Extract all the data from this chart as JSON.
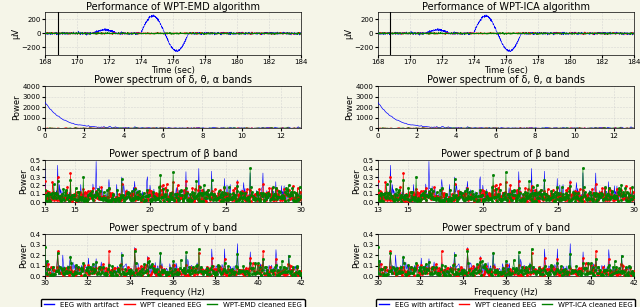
{
  "left_title": "Performance of WPT-EMD algorithm",
  "right_title": "Performance of WPT-ICA algorithm",
  "left_legend": [
    "EEG with artifact",
    "WPT cleaned EEG",
    "WPT-EMD cleaned EEG"
  ],
  "right_legend": [
    "EEG with artifact",
    "WPT cleaned EEG",
    "WPT-ICA cleaned EEG"
  ],
  "legend_colors": [
    "blue",
    "red",
    "green"
  ],
  "eeg_ylabel": "μV",
  "power_ylabel": "Power",
  "time_xlabel": "Time (sec)",
  "freq_xlabel": "Frequency (Hz)",
  "row1_title": "",
  "row2_title": "Power spectrum of δ, θ, α bands",
  "row3_title": "Power spectrum of β band",
  "row4_title": "Power spectrum of γ band",
  "time_xlim": [
    168,
    184
  ],
  "time_xticks": [
    168,
    170,
    172,
    174,
    176,
    178,
    180,
    182,
    184
  ],
  "time_ylim": [
    -300,
    300
  ],
  "time_yticks": [
    -200,
    0,
    200
  ],
  "delta_xlim": [
    0,
    13
  ],
  "delta_xticks": [
    0,
    2,
    4,
    6,
    8,
    10,
    12
  ],
  "delta_ylim": [
    0,
    4000
  ],
  "delta_yticks": [
    0,
    1000,
    2000,
    3000,
    4000
  ],
  "beta_xlim": [
    13,
    30
  ],
  "beta_xticks": [
    13,
    15,
    20,
    25,
    30
  ],
  "beta_ylim": [
    0,
    0.5
  ],
  "beta_yticks": [
    0,
    0.1,
    0.2,
    0.3,
    0.4,
    0.5
  ],
  "gamma_xlim": [
    30,
    42
  ],
  "gamma_xticks": [
    30,
    32,
    34,
    36,
    38,
    40,
    42
  ],
  "gamma_ylim": [
    0,
    0.4
  ],
  "gamma_yticks": [
    0,
    0.1,
    0.2,
    0.3,
    0.4
  ],
  "bg_color": "#f5f5e8",
  "grid_color": "#cccccc",
  "title_fontsize": 7,
  "label_fontsize": 6,
  "tick_fontsize": 5,
  "legend_fontsize": 5
}
